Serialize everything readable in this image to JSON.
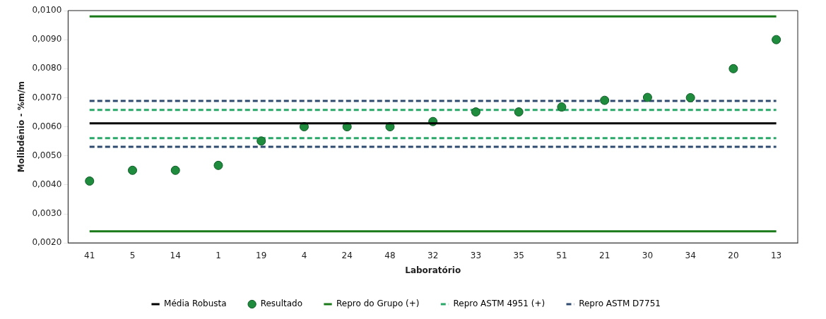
{
  "chart_data": {
    "type": "line",
    "xlabel": "Laboratório",
    "ylabel": "Molibdênio - %m/m",
    "categories": [
      "41",
      "5",
      "14",
      "1",
      "19",
      "4",
      "24",
      "48",
      "32",
      "33",
      "35",
      "51",
      "21",
      "30",
      "34",
      "20",
      "13"
    ],
    "ylim": [
      0.002,
      0.01
    ],
    "yticks": [
      {
        "value": 0.002,
        "label": "0,0020"
      },
      {
        "value": 0.003,
        "label": "0,0030"
      },
      {
        "value": 0.004,
        "label": "0,0040"
      },
      {
        "value": 0.005,
        "label": "0,0050"
      },
      {
        "value": 0.006,
        "label": "0,0060"
      },
      {
        "value": 0.007,
        "label": "0,0070"
      },
      {
        "value": 0.008,
        "label": "0,0080"
      },
      {
        "value": 0.009,
        "label": "0,0090"
      },
      {
        "value": 0.01,
        "label": "0,0100"
      }
    ],
    "grid": false,
    "legend": "bottom",
    "series": [
      {
        "name": "Média Robusta",
        "color": "#000000",
        "line_style": "solid",
        "marker": "none",
        "values": [
          0.00612,
          0.00612,
          0.00612,
          0.00612,
          0.00612,
          0.00612,
          0.00612,
          0.00612,
          0.00612,
          0.00612,
          0.00612,
          0.00612,
          0.00612,
          0.00612,
          0.00612,
          0.00612,
          0.00612
        ]
      },
      {
        "name": "Resultado",
        "type": "scatter",
        "color": "#1e8c3c",
        "marker": "circle",
        "x": [
          "41",
          "5",
          "14",
          "1",
          "19",
          "4",
          "24",
          "48",
          "32",
          "33",
          "35",
          "51",
          "21",
          "30",
          "34",
          "20",
          "13"
        ],
        "values": [
          0.00413,
          0.0045,
          0.0045,
          0.00467,
          0.00551,
          0.006,
          0.006,
          0.006,
          0.00618,
          0.00651,
          0.00651,
          0.00668,
          0.00691,
          0.00701,
          0.007,
          0.008,
          0.009
        ]
      },
      {
        "name": "Repro do Grupo (+)",
        "color": "#1a7a1a",
        "line_style": "solid",
        "marker": "none",
        "values": [
          0.0098,
          0.0098,
          0.0098,
          0.0098,
          0.0098,
          0.0098,
          0.0098,
          0.0098,
          0.0098,
          0.0098,
          0.0098,
          0.0098,
          0.0098,
          0.0098,
          0.0098,
          0.0098,
          0.0098
        ]
      },
      {
        "color": "#1a7a1a",
        "line_style": "solid",
        "marker": "none",
        "values": [
          0.0024,
          0.0024,
          0.0024,
          0.0024,
          0.0024,
          0.0024,
          0.0024,
          0.0024,
          0.0024,
          0.0024,
          0.0024,
          0.0024,
          0.0024,
          0.0024,
          0.0024,
          0.0024,
          0.0024
        ]
      },
      {
        "name": "Repro ASTM 4951 (+)",
        "color": "#2aa86a",
        "line_style": "dashed",
        "marker": "none",
        "values": [
          0.00658,
          0.00658,
          0.00658,
          0.00658,
          0.00658,
          0.00658,
          0.00658,
          0.00658,
          0.00658,
          0.00658,
          0.00658,
          0.00658,
          0.00658,
          0.00658,
          0.00658,
          0.00658,
          0.00658
        ]
      },
      {
        "color": "#2aa86a",
        "line_style": "dashed",
        "marker": "none",
        "values": [
          0.00561,
          0.00561,
          0.00561,
          0.00561,
          0.00561,
          0.00561,
          0.00561,
          0.00561,
          0.00561,
          0.00561,
          0.00561,
          0.00561,
          0.00561,
          0.00561,
          0.00561,
          0.00561,
          0.00561
        ]
      },
      {
        "name": "Repro ASTM D7751",
        "color": "#2e4a6e",
        "line_style": "dashed",
        "marker": "none",
        "values": [
          0.00689,
          0.00689,
          0.00689,
          0.00689,
          0.00689,
          0.00689,
          0.00689,
          0.00689,
          0.00689,
          0.00689,
          0.00689,
          0.00689,
          0.00689,
          0.00689,
          0.00689,
          0.00689,
          0.00689
        ]
      },
      {
        "color": "#2e4a6e",
        "line_style": "dashed",
        "marker": "none",
        "values": [
          0.00531,
          0.00531,
          0.00531,
          0.00531,
          0.00531,
          0.00531,
          0.00531,
          0.00531,
          0.00531,
          0.00531,
          0.00531,
          0.00531,
          0.00531,
          0.00531,
          0.00531,
          0.00531,
          0.00531
        ]
      }
    ]
  }
}
